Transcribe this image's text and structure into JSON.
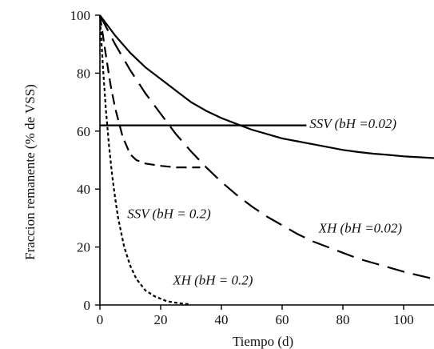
{
  "chart_data": {
    "type": "line",
    "title": "",
    "xlabel": "Tiempo (d)",
    "ylabel": "Fraccion remanente (% de VSS)",
    "xlim": [
      0,
      110
    ],
    "ylim": [
      0,
      100
    ],
    "xticks": [
      0,
      20,
      40,
      60,
      80,
      100
    ],
    "yticks": [
      0,
      20,
      40,
      60,
      80,
      100
    ],
    "grid": false,
    "legend": "none",
    "annotations": [
      {
        "text": "SSV (bH =0.02)",
        "x": 69,
        "y": 61
      },
      {
        "text": "SSV (bH = 0.2)",
        "x": 9,
        "y": 30
      },
      {
        "text": "XH (bH =0.02)",
        "x": 72,
        "y": 25
      },
      {
        "text": "XH (bH = 0.2)",
        "x": 24,
        "y": 7
      }
    ],
    "series": [
      {
        "style": "solid",
        "x": [
          0,
          5,
          10,
          15,
          20,
          25,
          30,
          35,
          40,
          45,
          50,
          55,
          60,
          65,
          70,
          75,
          80,
          85,
          90,
          95,
          100,
          105,
          110
        ],
        "y": [
          100,
          93,
          87,
          82,
          78,
          74,
          70,
          67,
          64.5,
          62.5,
          60.5,
          59,
          57.5,
          56.5,
          55.5,
          54.5,
          53.5,
          52.8,
          52.2,
          51.8,
          51.3,
          51,
          50.7
        ]
      },
      {
        "style": "solid",
        "x": [
          0,
          10,
          20,
          30,
          40,
          50,
          60,
          68
        ],
        "y": [
          62,
          62,
          62,
          62,
          62,
          62,
          62,
          62
        ]
      },
      {
        "style": "long-dash",
        "x": [
          0,
          5,
          10,
          15,
          20,
          25,
          30,
          35,
          40,
          45,
          50,
          55,
          60,
          65,
          70,
          75,
          80,
          85,
          90,
          95,
          100,
          105,
          110
        ],
        "y": [
          100,
          90,
          81,
          73,
          66,
          59,
          53,
          47.5,
          42.5,
          38,
          34,
          30.5,
          27.5,
          24.5,
          22,
          20,
          18,
          16,
          14.5,
          13,
          11.5,
          10.2,
          9
        ]
      },
      {
        "style": "dash",
        "x": [
          0,
          2,
          3.5,
          5,
          7.5,
          10,
          12,
          15,
          20,
          25,
          33
        ],
        "y": [
          100,
          86,
          76,
          68,
          58,
          52,
          50,
          48.8,
          48,
          47.5,
          47.5
        ]
      },
      {
        "style": "short-dash",
        "x": [
          0,
          1,
          2,
          3,
          4,
          5,
          6,
          8,
          10,
          12,
          15,
          18,
          22,
          26,
          30
        ],
        "y": [
          100,
          82,
          67,
          55,
          45,
          37,
          30,
          20,
          13.5,
          9,
          5,
          3,
          1.3,
          0.6,
          0.2
        ]
      }
    ]
  }
}
